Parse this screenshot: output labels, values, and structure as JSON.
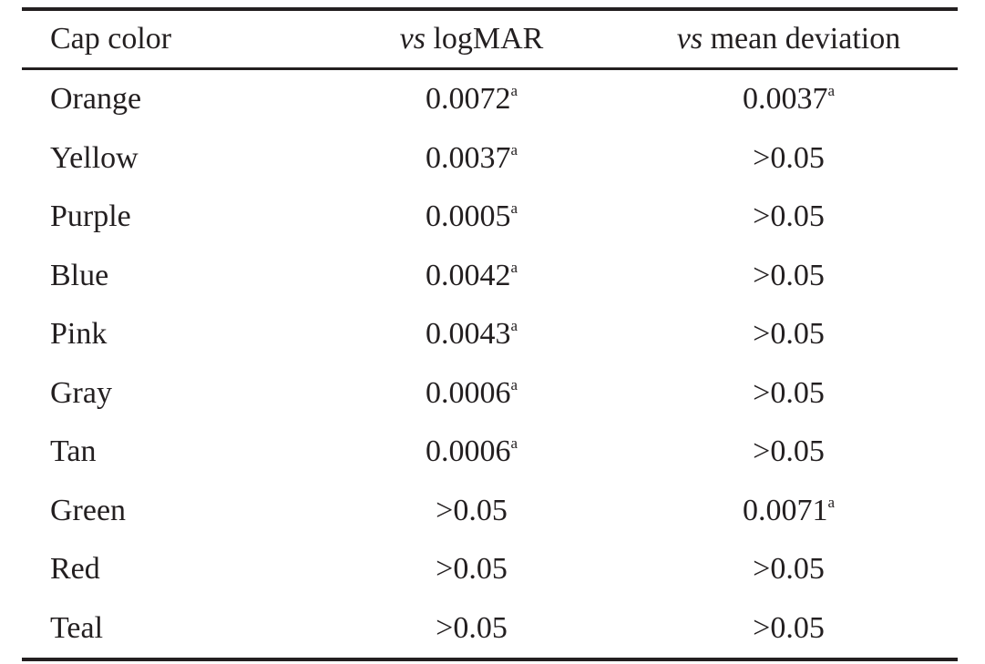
{
  "table": {
    "headers": {
      "cap_color": "Cap color",
      "logmar_vs": "vs",
      "logmar_rest": "logMAR",
      "md_vs": "vs",
      "md_rest": "mean deviation"
    },
    "rows": [
      {
        "cap": "Orange",
        "logmar": "0.0072",
        "logmar_sup": "a",
        "md": "0.0037",
        "md_sup": "a"
      },
      {
        "cap": "Yellow",
        "logmar": "0.0037",
        "logmar_sup": "a",
        "md": ">0.05",
        "md_sup": ""
      },
      {
        "cap": "Purple",
        "logmar": "0.0005",
        "logmar_sup": "a",
        "md": ">0.05",
        "md_sup": ""
      },
      {
        "cap": "Blue",
        "logmar": "0.0042",
        "logmar_sup": "a",
        "md": ">0.05",
        "md_sup": ""
      },
      {
        "cap": "Pink",
        "logmar": "0.0043",
        "logmar_sup": "a",
        "md": ">0.05",
        "md_sup": ""
      },
      {
        "cap": "Gray",
        "logmar": "0.0006",
        "logmar_sup": "a",
        "md": ">0.05",
        "md_sup": ""
      },
      {
        "cap": "Tan",
        "logmar": "0.0006",
        "logmar_sup": "a",
        "md": ">0.05",
        "md_sup": ""
      },
      {
        "cap": "Green",
        "logmar": ">0.05",
        "logmar_sup": "",
        "md": "0.0071",
        "md_sup": "a"
      },
      {
        "cap": "Red",
        "logmar": ">0.05",
        "logmar_sup": "",
        "md": ">0.05",
        "md_sup": ""
      },
      {
        "cap": "Teal",
        "logmar": ">0.05",
        "logmar_sup": "",
        "md": ">0.05",
        "md_sup": ""
      }
    ]
  },
  "colors": {
    "text": "#231f20",
    "rule": "#231f20",
    "background": "#ffffff"
  }
}
